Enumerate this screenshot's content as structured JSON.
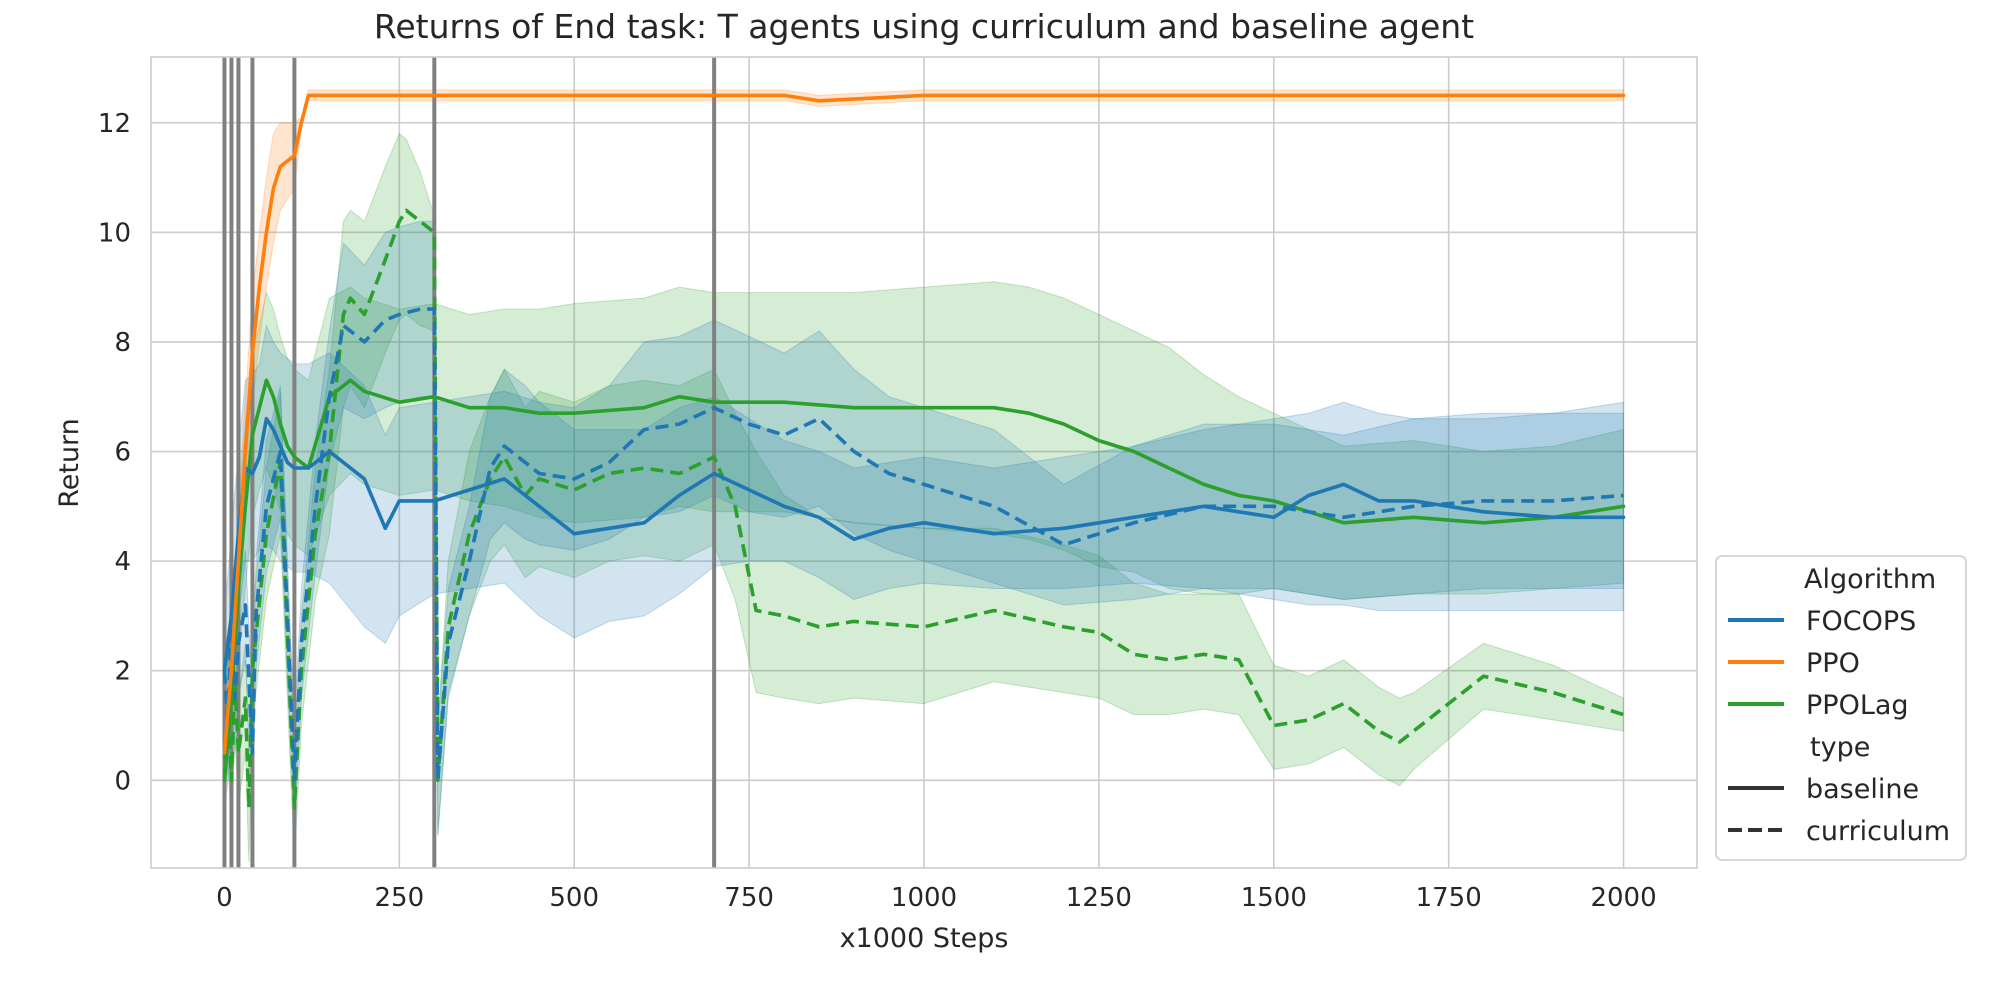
{
  "chart_data": {
    "type": "line",
    "title": "Returns of End task: T agents using curriculum and baseline agent",
    "xlabel": "x1000 Steps",
    "ylabel": "Return",
    "xlim": [
      -105,
      2105
    ],
    "ylim": [
      -1.6,
      13.2
    ],
    "xticks": [
      0,
      250,
      500,
      750,
      1000,
      1250,
      1500,
      1750,
      2000
    ],
    "yticks": [
      0,
      2,
      4,
      6,
      8,
      10,
      12
    ],
    "grid": true,
    "legend_position": "right",
    "legend": {
      "title_algorithm": "Algorithm",
      "title_type": "type",
      "entries_algorithm": [
        "FOCOPS",
        "PPO",
        "PPOLag"
      ],
      "entries_type": [
        "baseline",
        "curriculum"
      ]
    },
    "vertical_lines": [
      0,
      10,
      20,
      40,
      100,
      300,
      700
    ],
    "colors": {
      "FOCOPS": "#1f77b4",
      "PPO": "#ff7f0e",
      "PPOLag": "#2ca02c",
      "vline": "#808080"
    },
    "series": [
      {
        "algorithm": "PPO",
        "type": "baseline",
        "x": [
          0,
          10,
          20,
          30,
          40,
          50,
          60,
          70,
          80,
          90,
          100,
          110,
          120,
          200,
          400,
          600,
          800,
          850,
          1000,
          1200,
          1400,
          1600,
          1800,
          2000
        ],
        "y": [
          0.5,
          2.0,
          4.0,
          6.0,
          7.8,
          9.0,
          10.0,
          10.8,
          11.2,
          11.3,
          11.4,
          12.0,
          12.5,
          12.5,
          12.5,
          12.5,
          12.5,
          12.4,
          12.5,
          12.5,
          12.5,
          12.5,
          12.5,
          12.5
        ],
        "lower": [
          0.0,
          1.2,
          3.0,
          5.0,
          6.8,
          8.0,
          9.0,
          9.8,
          10.4,
          10.6,
          10.8,
          11.9,
          12.4,
          12.4,
          12.4,
          12.4,
          12.4,
          12.3,
          12.4,
          12.4,
          12.4,
          12.4,
          12.4,
          12.4
        ],
        "upper": [
          1.0,
          2.8,
          5.0,
          7.0,
          8.8,
          10.0,
          11.0,
          11.8,
          12.0,
          12.0,
          12.0,
          12.1,
          12.6,
          12.6,
          12.6,
          12.6,
          12.6,
          12.5,
          12.6,
          12.6,
          12.6,
          12.6,
          12.6,
          12.6
        ]
      },
      {
        "algorithm": "FOCOPS",
        "type": "baseline",
        "x": [
          0,
          10,
          20,
          30,
          40,
          50,
          60,
          70,
          80,
          90,
          100,
          120,
          150,
          200,
          230,
          250,
          300,
          350,
          400,
          450,
          500,
          550,
          600,
          650,
          700,
          750,
          800,
          850,
          900,
          950,
          1000,
          1100,
          1200,
          1300,
          1400,
          1450,
          1500,
          1550,
          1600,
          1650,
          1700,
          1800,
          1900,
          2000
        ],
        "y": [
          2.0,
          3.0,
          4.5,
          5.7,
          5.6,
          5.9,
          6.6,
          6.4,
          6.1,
          5.8,
          5.7,
          5.7,
          6.0,
          5.5,
          4.6,
          5.1,
          5.1,
          5.3,
          5.5,
          5.0,
          4.5,
          4.6,
          4.7,
          5.2,
          5.6,
          5.3,
          5.0,
          4.8,
          4.4,
          4.6,
          4.7,
          4.5,
          4.6,
          4.8,
          5.0,
          4.9,
          4.8,
          5.2,
          5.4,
          5.1,
          5.1,
          4.9,
          4.8,
          4.8
        ],
        "lower": [
          0.5,
          1.5,
          3.0,
          4.0,
          4.0,
          4.2,
          4.3,
          4.2,
          4.0,
          3.9,
          3.8,
          3.8,
          3.6,
          2.8,
          2.5,
          3.0,
          3.4,
          3.5,
          3.6,
          3.0,
          2.6,
          2.9,
          3.0,
          3.4,
          3.9,
          4.0,
          4.0,
          3.7,
          3.3,
          3.5,
          3.6,
          3.5,
          3.5,
          3.6,
          3.5,
          3.4,
          3.3,
          3.2,
          3.2,
          3.1,
          3.1,
          3.1,
          3.1,
          3.1
        ],
        "upper": [
          3.0,
          4.5,
          6.0,
          7.3,
          7.4,
          7.6,
          8.3,
          8.0,
          7.8,
          7.7,
          7.6,
          7.6,
          7.8,
          7.2,
          6.3,
          6.8,
          6.9,
          7.0,
          7.1,
          6.9,
          6.4,
          6.4,
          6.4,
          6.8,
          7.0,
          6.6,
          6.2,
          6.0,
          5.7,
          5.8,
          5.9,
          5.7,
          5.9,
          6.1,
          6.4,
          6.5,
          6.6,
          6.7,
          6.9,
          6.7,
          6.6,
          6.6,
          6.7,
          6.7
        ]
      },
      {
        "algorithm": "FOCOPS",
        "type": "curriculum",
        "x": [
          0,
          5,
          10,
          15,
          20,
          30,
          40,
          45,
          60,
          80,
          100,
          110,
          130,
          150,
          170,
          200,
          230,
          250,
          280,
          300,
          305,
          320,
          350,
          380,
          400,
          430,
          450,
          500,
          550,
          600,
          650,
          700,
          750,
          800,
          850,
          900,
          950,
          1000,
          1100,
          1200,
          1300,
          1400,
          1500,
          1600,
          1700,
          1800,
          1900,
          2000
        ],
        "y": [
          2.0,
          1.0,
          3.0,
          1.5,
          2.5,
          3.2,
          0.5,
          3.0,
          5.0,
          6.0,
          0.0,
          2.5,
          5.0,
          7.0,
          8.3,
          8.0,
          8.4,
          8.5,
          8.6,
          8.6,
          0.0,
          2.5,
          4.0,
          5.7,
          6.1,
          5.8,
          5.6,
          5.5,
          5.8,
          6.4,
          6.5,
          6.8,
          6.5,
          6.3,
          6.6,
          6.0,
          5.6,
          5.4,
          5.0,
          4.3,
          4.7,
          5.0,
          5.0,
          4.8,
          5.0,
          5.1,
          5.1,
          5.2
        ],
        "lower": [
          1.0,
          0.0,
          2.0,
          0.5,
          1.5,
          2.2,
          -0.5,
          2.0,
          3.8,
          4.8,
          -1.0,
          1.5,
          3.8,
          5.8,
          6.8,
          6.6,
          6.8,
          6.9,
          7.0,
          7.0,
          -1.0,
          1.5,
          3.0,
          4.4,
          4.7,
          4.4,
          4.3,
          4.2,
          4.4,
          4.8,
          4.9,
          5.2,
          4.9,
          4.8,
          5.0,
          4.5,
          4.2,
          4.0,
          3.6,
          3.2,
          3.3,
          3.5,
          3.5,
          3.3,
          3.4,
          3.5,
          3.5,
          3.5
        ],
        "upper": [
          3.0,
          2.0,
          4.0,
          2.5,
          3.5,
          4.2,
          1.5,
          4.0,
          6.2,
          7.2,
          1.0,
          3.5,
          6.2,
          8.2,
          9.8,
          9.4,
          10.0,
          10.1,
          10.2,
          10.2,
          1.0,
          3.5,
          5.0,
          7.0,
          7.5,
          7.2,
          6.9,
          6.8,
          7.2,
          8.0,
          8.1,
          8.4,
          8.1,
          7.8,
          8.2,
          7.5,
          7.0,
          6.8,
          6.4,
          5.4,
          6.1,
          6.5,
          6.5,
          6.3,
          6.6,
          6.7,
          6.7,
          6.9
        ]
      },
      {
        "algorithm": "PPOLag",
        "type": "baseline",
        "x": [
          0,
          10,
          20,
          30,
          40,
          50,
          60,
          70,
          80,
          90,
          100,
          120,
          150,
          180,
          200,
          250,
          300,
          350,
          400,
          450,
          500,
          600,
          650,
          700,
          800,
          900,
          1000,
          1100,
          1150,
          1200,
          1250,
          1300,
          1350,
          1400,
          1450,
          1500,
          1550,
          1600,
          1700,
          1800,
          1900,
          2000
        ],
        "y": [
          0.0,
          1.5,
          3.5,
          5.0,
          6.3,
          6.8,
          7.3,
          7.0,
          6.5,
          6.1,
          5.9,
          5.7,
          7.0,
          7.3,
          7.1,
          6.9,
          7.0,
          6.8,
          6.8,
          6.7,
          6.7,
          6.8,
          7.0,
          6.9,
          6.9,
          6.8,
          6.8,
          6.8,
          6.7,
          6.5,
          6.2,
          6.0,
          5.7,
          5.4,
          5.2,
          5.1,
          4.9,
          4.7,
          4.8,
          4.7,
          4.8,
          5.0
        ],
        "lower": [
          -0.5,
          0.5,
          2.2,
          3.5,
          4.8,
          5.3,
          5.7,
          5.4,
          4.9,
          4.5,
          4.3,
          4.1,
          5.2,
          5.6,
          5.4,
          5.2,
          5.3,
          5.1,
          5.0,
          4.8,
          4.7,
          4.8,
          5.0,
          4.9,
          4.9,
          4.7,
          4.6,
          4.5,
          4.4,
          4.2,
          3.9,
          3.8,
          3.5,
          3.4,
          3.4,
          3.5,
          3.4,
          3.3,
          3.4,
          3.4,
          3.5,
          3.6
        ],
        "upper": [
          0.5,
          2.5,
          4.8,
          6.5,
          7.8,
          8.3,
          8.9,
          8.6,
          8.1,
          7.7,
          7.5,
          7.3,
          8.8,
          9.0,
          8.8,
          8.6,
          8.7,
          8.5,
          8.6,
          8.6,
          8.7,
          8.8,
          9.0,
          8.9,
          8.9,
          8.9,
          9.0,
          9.1,
          9.0,
          8.8,
          8.5,
          8.2,
          7.9,
          7.4,
          7.0,
          6.7,
          6.4,
          6.1,
          6.2,
          6.0,
          6.1,
          6.4
        ]
      },
      {
        "algorithm": "PPOLag",
        "type": "curriculum",
        "x": [
          0,
          5,
          10,
          15,
          20,
          30,
          35,
          40,
          60,
          80,
          100,
          110,
          130,
          150,
          170,
          180,
          200,
          230,
          250,
          260,
          280,
          300,
          305,
          320,
          350,
          380,
          400,
          430,
          450,
          500,
          550,
          600,
          650,
          700,
          730,
          760,
          800,
          850,
          900,
          1000,
          1100,
          1200,
          1250,
          1300,
          1350,
          1400,
          1450,
          1500,
          1550,
          1600,
          1650,
          1680,
          1700,
          1800,
          1900,
          2000
        ],
        "y": [
          0.0,
          1.5,
          0.0,
          1.8,
          0.5,
          1.5,
          -0.5,
          2.0,
          4.5,
          5.8,
          -0.5,
          2.0,
          4.5,
          6.0,
          8.5,
          8.8,
          8.5,
          9.5,
          10.2,
          10.4,
          10.2,
          10.0,
          0.0,
          2.8,
          4.5,
          5.5,
          5.9,
          5.2,
          5.5,
          5.3,
          5.6,
          5.7,
          5.6,
          5.9,
          5.0,
          3.1,
          3.0,
          2.8,
          2.9,
          2.8,
          3.1,
          2.8,
          2.7,
          2.3,
          2.2,
          2.3,
          2.2,
          1.0,
          1.1,
          1.4,
          0.9,
          0.7,
          0.9,
          1.9,
          1.6,
          1.2
        ],
        "lower": [
          -0.5,
          0.5,
          -1.0,
          0.8,
          -0.5,
          0.5,
          -1.5,
          1.0,
          3.3,
          4.5,
          -1.5,
          1.0,
          3.3,
          4.5,
          6.8,
          7.2,
          6.8,
          7.8,
          8.4,
          8.5,
          8.3,
          8.2,
          -1.0,
          1.6,
          3.0,
          4.0,
          4.3,
          3.7,
          3.9,
          3.7,
          4.0,
          4.1,
          4.0,
          4.3,
          3.3,
          1.6,
          1.5,
          1.4,
          1.5,
          1.4,
          1.8,
          1.6,
          1.5,
          1.2,
          1.2,
          1.3,
          1.2,
          0.2,
          0.3,
          0.6,
          0.1,
          -0.1,
          0.2,
          1.3,
          1.1,
          0.9
        ],
        "upper": [
          0.5,
          2.5,
          1.0,
          2.8,
          1.5,
          2.5,
          0.5,
          3.0,
          5.7,
          7.1,
          0.5,
          3.0,
          5.7,
          7.5,
          10.2,
          10.4,
          10.2,
          11.2,
          11.8,
          11.7,
          11.1,
          10.3,
          1.0,
          4.0,
          6.0,
          7.0,
          7.5,
          6.8,
          7.1,
          6.9,
          7.2,
          7.3,
          7.2,
          7.5,
          6.7,
          6.0,
          5.2,
          4.8,
          4.7,
          4.6,
          4.6,
          4.3,
          4.1,
          3.6,
          3.4,
          3.4,
          3.4,
          2.1,
          1.9,
          2.2,
          1.7,
          1.5,
          1.6,
          2.5,
          2.1,
          1.5
        ]
      }
    ]
  }
}
